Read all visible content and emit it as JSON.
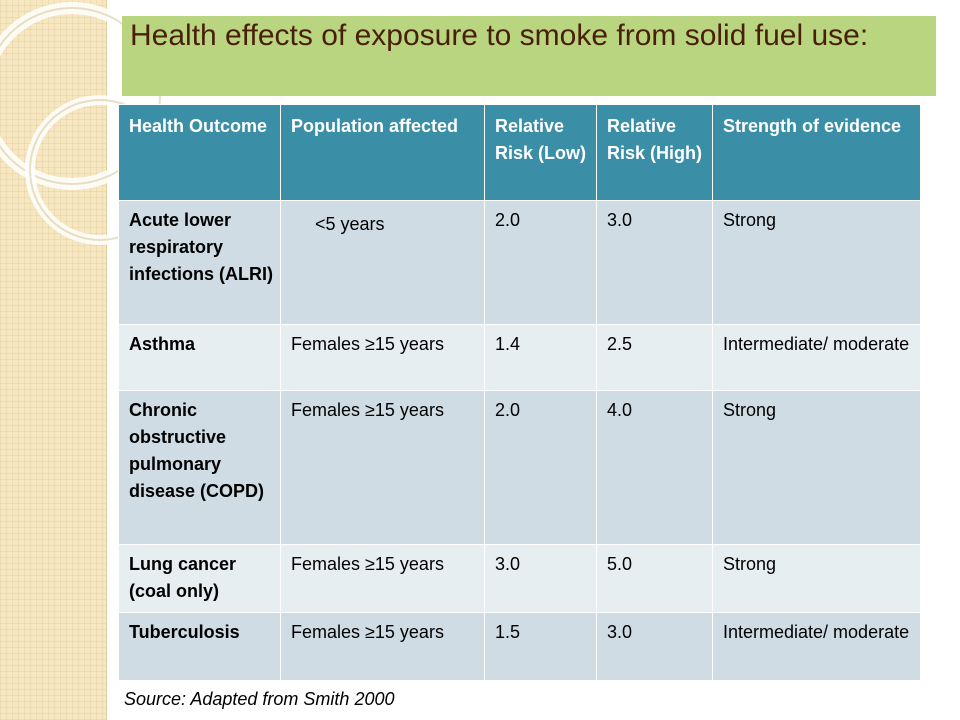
{
  "title": "Health effects of exposure to smoke from solid fuel use:",
  "table": {
    "headers": [
      "Health Outcome",
      "Population affected",
      "Relative Risk (Low)",
      "Relative Risk (High)",
      "Strength of  evidence"
    ],
    "rows": [
      {
        "outcome": "Acute lower respiratory infections (ALRI)",
        "population": "<5 years",
        "low": "2.0",
        "high": "3.0",
        "strength": "Strong"
      },
      {
        "outcome": "Asthma",
        "population": "Females ≥15 years",
        "low": "1.4",
        "high": "2.5",
        "strength": "Intermediate/ moderate"
      },
      {
        "outcome": "Chronic obstructive pulmonary disease (COPD)",
        "population": "Females ≥15 years",
        "low": "2.0",
        "high": "4.0",
        "strength": "Strong"
      },
      {
        "outcome": "Lung cancer (coal only)",
        "population": "Females ≥15 years",
        "low": "3.0",
        "high": "5.0",
        "strength": "Strong"
      },
      {
        "outcome": "Tuberculosis",
        "population": "Females ≥15 years",
        "low": "1.5",
        "high": "3.0",
        "strength": "Intermediate/ moderate"
      }
    ]
  },
  "source": "Source: Adapted from Smith 2000",
  "colors": {
    "title_bar": "#b9d57f",
    "title_text": "#4a1f0a",
    "header": "#3a8ea5",
    "row_odd": "#cfdce3",
    "row_even": "#e7eef2"
  }
}
